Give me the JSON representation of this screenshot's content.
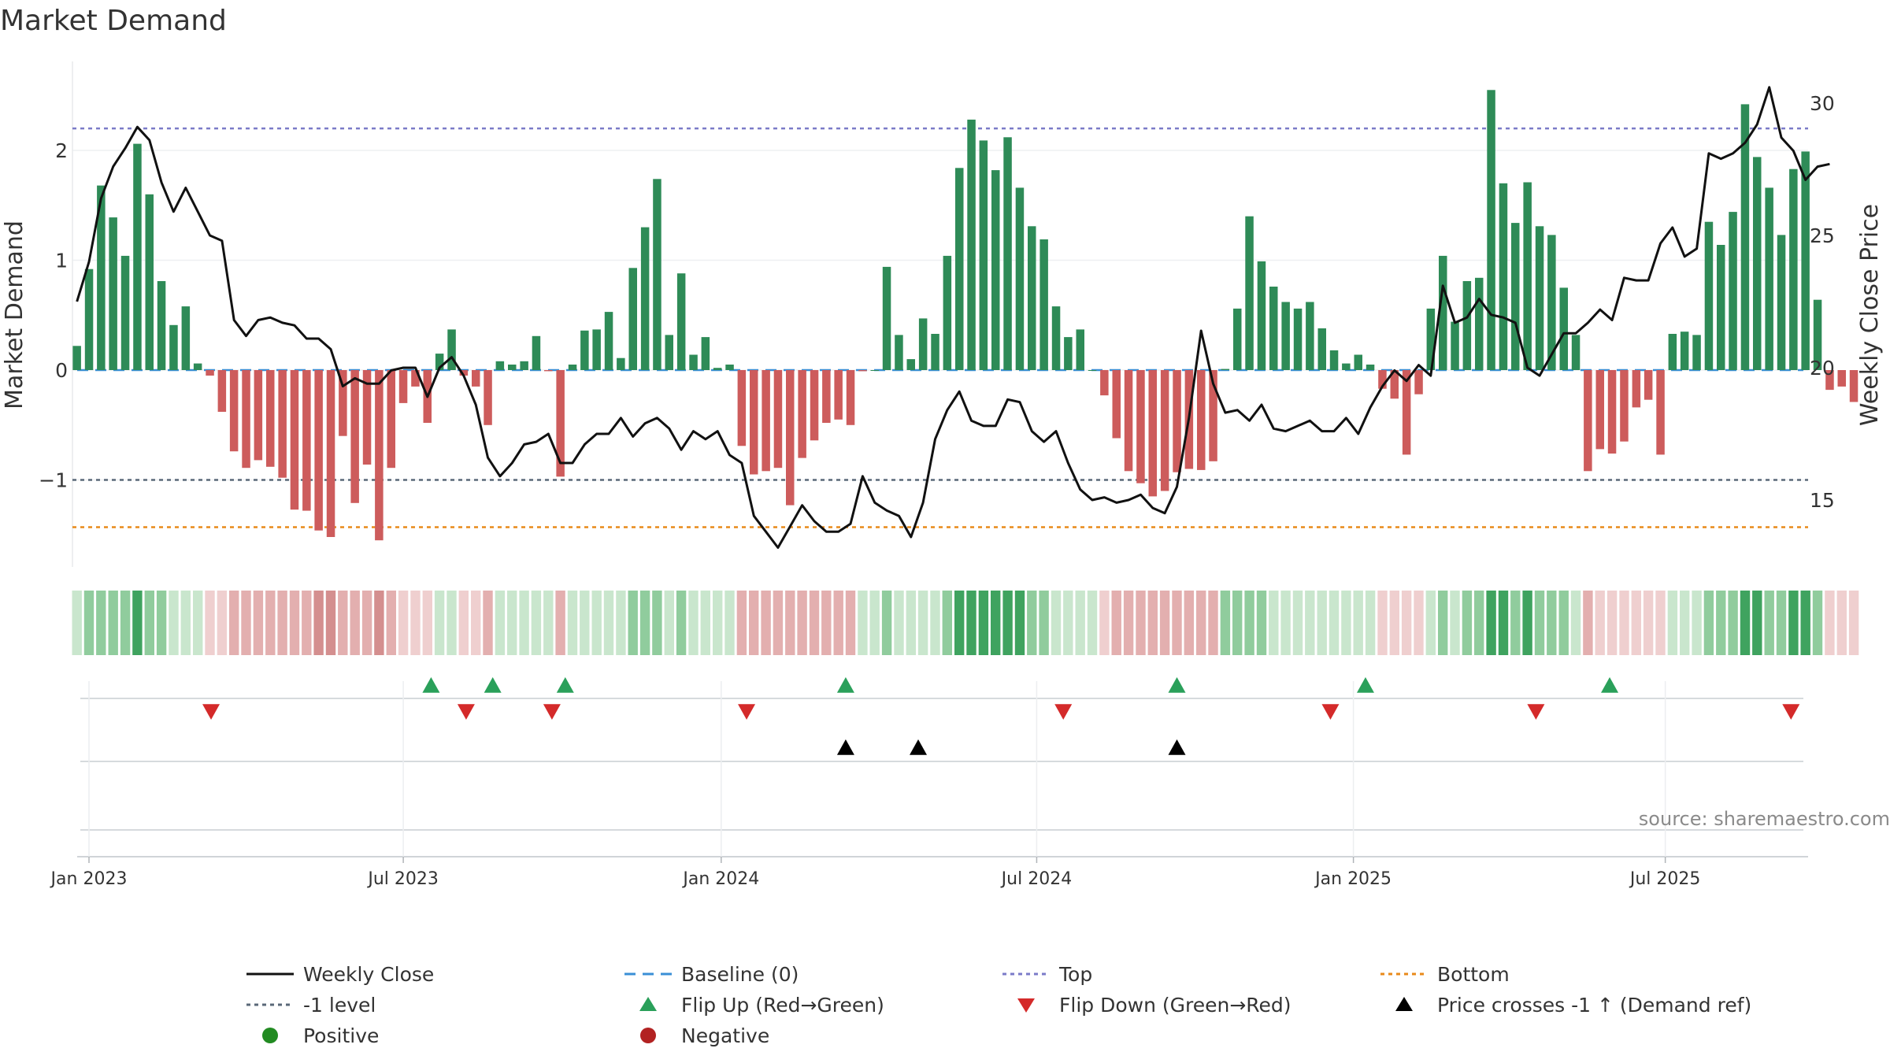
{
  "chart_data": {
    "type": "bar",
    "title": "Market Demand",
    "ylabel_left": "Market Demand",
    "ylabel_right": "Weekly Close Price",
    "ylim_left": [
      -1.8,
      2.8
    ],
    "ylim_right": [
      12.1,
      31.0
    ],
    "yticks_left": [
      {
        "v": 2,
        "label": "2"
      },
      {
        "v": 1,
        "label": "1"
      },
      {
        "v": 0,
        "label": "0"
      },
      {
        "v": -1,
        "label": "−1"
      }
    ],
    "yticks_right": [
      {
        "v": 30,
        "label": "30"
      },
      {
        "v": 25,
        "label": "25"
      },
      {
        "v": 20,
        "label": "20"
      },
      {
        "v": 15,
        "label": "15"
      }
    ],
    "x_ticks": [
      {
        "week": 0,
        "label": "Jan 2023"
      },
      {
        "week": 26,
        "label": "Jul 2023"
      },
      {
        "week": 52.3,
        "label": "Jan 2024"
      },
      {
        "week": 78.4,
        "label": "Jul 2024"
      },
      {
        "week": 104.6,
        "label": "Jan 2025"
      },
      {
        "week": 130.4,
        "label": "Jul 2025"
      }
    ],
    "first_week_offset": -1,
    "reference_lines": {
      "top": 2.2,
      "minus_one_level": -1,
      "bottom": -1.43,
      "baseline": 0
    },
    "series": [
      {
        "name": "Market Demand",
        "values": [
          0.22,
          0.92,
          1.68,
          1.39,
          1.04,
          2.06,
          1.6,
          0.81,
          0.41,
          0.58,
          0.06,
          -0.05,
          -0.38,
          -0.74,
          -0.89,
          -0.82,
          -0.88,
          -0.98,
          -1.27,
          -1.28,
          -1.46,
          -1.52,
          -0.6,
          -1.21,
          -0.86,
          -1.55,
          -0.89,
          -0.3,
          -0.15,
          -0.48,
          0.15,
          0.37,
          -0.05,
          -0.15,
          -0.5,
          0.08,
          0.05,
          0.08,
          0.31,
          -0.01,
          -0.97,
          0.05,
          0.36,
          0.37,
          0.53,
          0.11,
          0.93,
          1.3,
          1.74,
          0.32,
          0.88,
          0.14,
          0.3,
          0.02,
          0.05,
          -0.69,
          -0.95,
          -0.92,
          -0.89,
          -1.23,
          -0.8,
          -0.64,
          -0.48,
          -0.45,
          -0.5,
          -0.01,
          0.0,
          0.94,
          0.32,
          0.1,
          0.47,
          0.33,
          1.04,
          1.84,
          2.28,
          2.09,
          1.82,
          2.12,
          1.66,
          1.31,
          1.19,
          0.58,
          0.3,
          0.37,
          0.0,
          -0.23,
          -0.62,
          -0.92,
          -1.03,
          -1.15,
          -1.1,
          -0.93,
          -0.9,
          -0.91,
          -0.83,
          0.01,
          0.56,
          1.4,
          0.99,
          0.76,
          0.62,
          0.56,
          0.62,
          0.38,
          0.18,
          0.06,
          0.14,
          0.05,
          -0.17,
          -0.26,
          -0.77,
          -0.22,
          0.56,
          1.04,
          0.44,
          0.81,
          0.84,
          2.55,
          1.7,
          1.34,
          1.71,
          1.31,
          1.23,
          0.75,
          0.32,
          -0.92,
          -0.72,
          -0.76,
          -0.65,
          -0.34,
          -0.27,
          -0.77,
          0.33,
          0.35,
          0.32,
          1.35,
          1.14,
          1.44,
          2.42,
          1.94,
          1.66,
          1.23,
          1.83,
          1.99,
          0.64,
          -0.18,
          -0.15,
          -0.29
        ]
      },
      {
        "name": "Weekly Close",
        "values": [
          22.5,
          24.0,
          26.4,
          27.6,
          28.3,
          29.1,
          28.6,
          27.0,
          25.9,
          26.8,
          25.9,
          25.0,
          24.8,
          21.8,
          21.2,
          21.8,
          21.9,
          21.7,
          21.6,
          21.1,
          21.1,
          20.7,
          19.3,
          19.6,
          19.4,
          19.4,
          19.9,
          20.0,
          20.0,
          18.9,
          20.0,
          20.4,
          19.7,
          18.6,
          16.6,
          15.9,
          16.4,
          17.1,
          17.2,
          17.5,
          16.4,
          16.4,
          17.1,
          17.5,
          17.5,
          18.1,
          17.4,
          17.9,
          18.1,
          17.7,
          16.9,
          17.6,
          17.3,
          17.6,
          16.7,
          16.4,
          14.4,
          13.8,
          13.2,
          14.0,
          14.8,
          14.2,
          13.8,
          13.8,
          14.1,
          15.9,
          14.9,
          14.6,
          14.4,
          13.6,
          14.9,
          17.3,
          18.4,
          19.1,
          18.0,
          17.8,
          17.8,
          18.8,
          18.7,
          17.6,
          17.2,
          17.6,
          16.4,
          15.4,
          15.0,
          15.1,
          14.9,
          15.0,
          15.2,
          14.7,
          14.5,
          15.5,
          18.1,
          21.4,
          19.4,
          18.3,
          18.4,
          18.0,
          18.6,
          17.7,
          17.6,
          17.8,
          18.0,
          17.6,
          17.6,
          18.1,
          17.5,
          18.5,
          19.3,
          19.9,
          19.5,
          20.1,
          19.7,
          23.1,
          21.7,
          21.9,
          22.6,
          22.0,
          21.9,
          21.7,
          20.0,
          19.7,
          20.5,
          21.3,
          21.3,
          21.7,
          22.2,
          21.8,
          23.4,
          23.3,
          23.3,
          24.7,
          25.3,
          24.2,
          24.5,
          28.1,
          27.9,
          28.1,
          28.5,
          29.2,
          30.6,
          28.7,
          28.2,
          27.1,
          27.6,
          27.7
        ]
      }
    ],
    "heat_strip_levels": [
      1,
      2,
      2,
      2,
      2,
      3,
      2,
      2,
      1,
      1,
      1,
      -1,
      -1,
      -2,
      -2,
      -2,
      -2,
      -2,
      -2,
      -2,
      -3,
      -3,
      -2,
      -2,
      -2,
      -3,
      -2,
      -1,
      -1,
      -1,
      1,
      1,
      -1,
      -1,
      -2,
      1,
      1,
      1,
      1,
      1,
      -2,
      1,
      1,
      1,
      1,
      1,
      2,
      2,
      2,
      1,
      2,
      1,
      1,
      1,
      1,
      -2,
      -2,
      -2,
      -2,
      -2,
      -2,
      -2,
      -2,
      -2,
      -2,
      1,
      1,
      2,
      1,
      1,
      1,
      1,
      2,
      3,
      3,
      3,
      3,
      3,
      3,
      2,
      2,
      1,
      1,
      1,
      1,
      -1,
      -2,
      -2,
      -2,
      -2,
      -2,
      -2,
      -2,
      -2,
      -2,
      2,
      2,
      2,
      2,
      1,
      1,
      1,
      1,
      1,
      1,
      1,
      1,
      1,
      -1,
      -1,
      -1,
      -1,
      1,
      2,
      1,
      2,
      2,
      3,
      3,
      2,
      3,
      2,
      2,
      2,
      1,
      -2,
      -1,
      -1,
      -1,
      -1,
      -1,
      -1,
      1,
      1,
      1,
      2,
      2,
      2,
      3,
      3,
      2,
      2,
      3,
      3,
      2,
      -1,
      -1,
      -1
    ],
    "events": {
      "flip_up_weeks": [
        28.3,
        33.4,
        39.4,
        62.6,
        90.0,
        105.6,
        125.8
      ],
      "flip_down_weeks": [
        10.1,
        31.2,
        38.3,
        54.4,
        80.6,
        102.7,
        119.7,
        140.8
      ],
      "price_crosses_weeks": [
        62.6,
        68.6,
        90.0
      ]
    },
    "legend": [
      "Weekly Close",
      "Baseline (0)",
      "Top",
      "Bottom",
      "-1 level",
      "Flip Up (Red→Green)",
      "Flip Down (Green→Red)",
      "Price crosses -1 ↑ (Demand ref)",
      "Positive",
      "Negative"
    ],
    "source": "source: sharemaestro.com"
  },
  "colors": {
    "positive_bar": "#2e8b57",
    "negative_bar": "#cd5c5c",
    "line": "#111111",
    "top_line": "#7b7bc8",
    "level_line": "#5a6878",
    "bottom_line": "#e88a1a",
    "baseline": "#3a8fd6",
    "flip_up": "#2aa05a",
    "flip_down": "#d42a2a",
    "cross": "#000000",
    "positive_dot": "#228b22",
    "negative_dot": "#b22222"
  }
}
